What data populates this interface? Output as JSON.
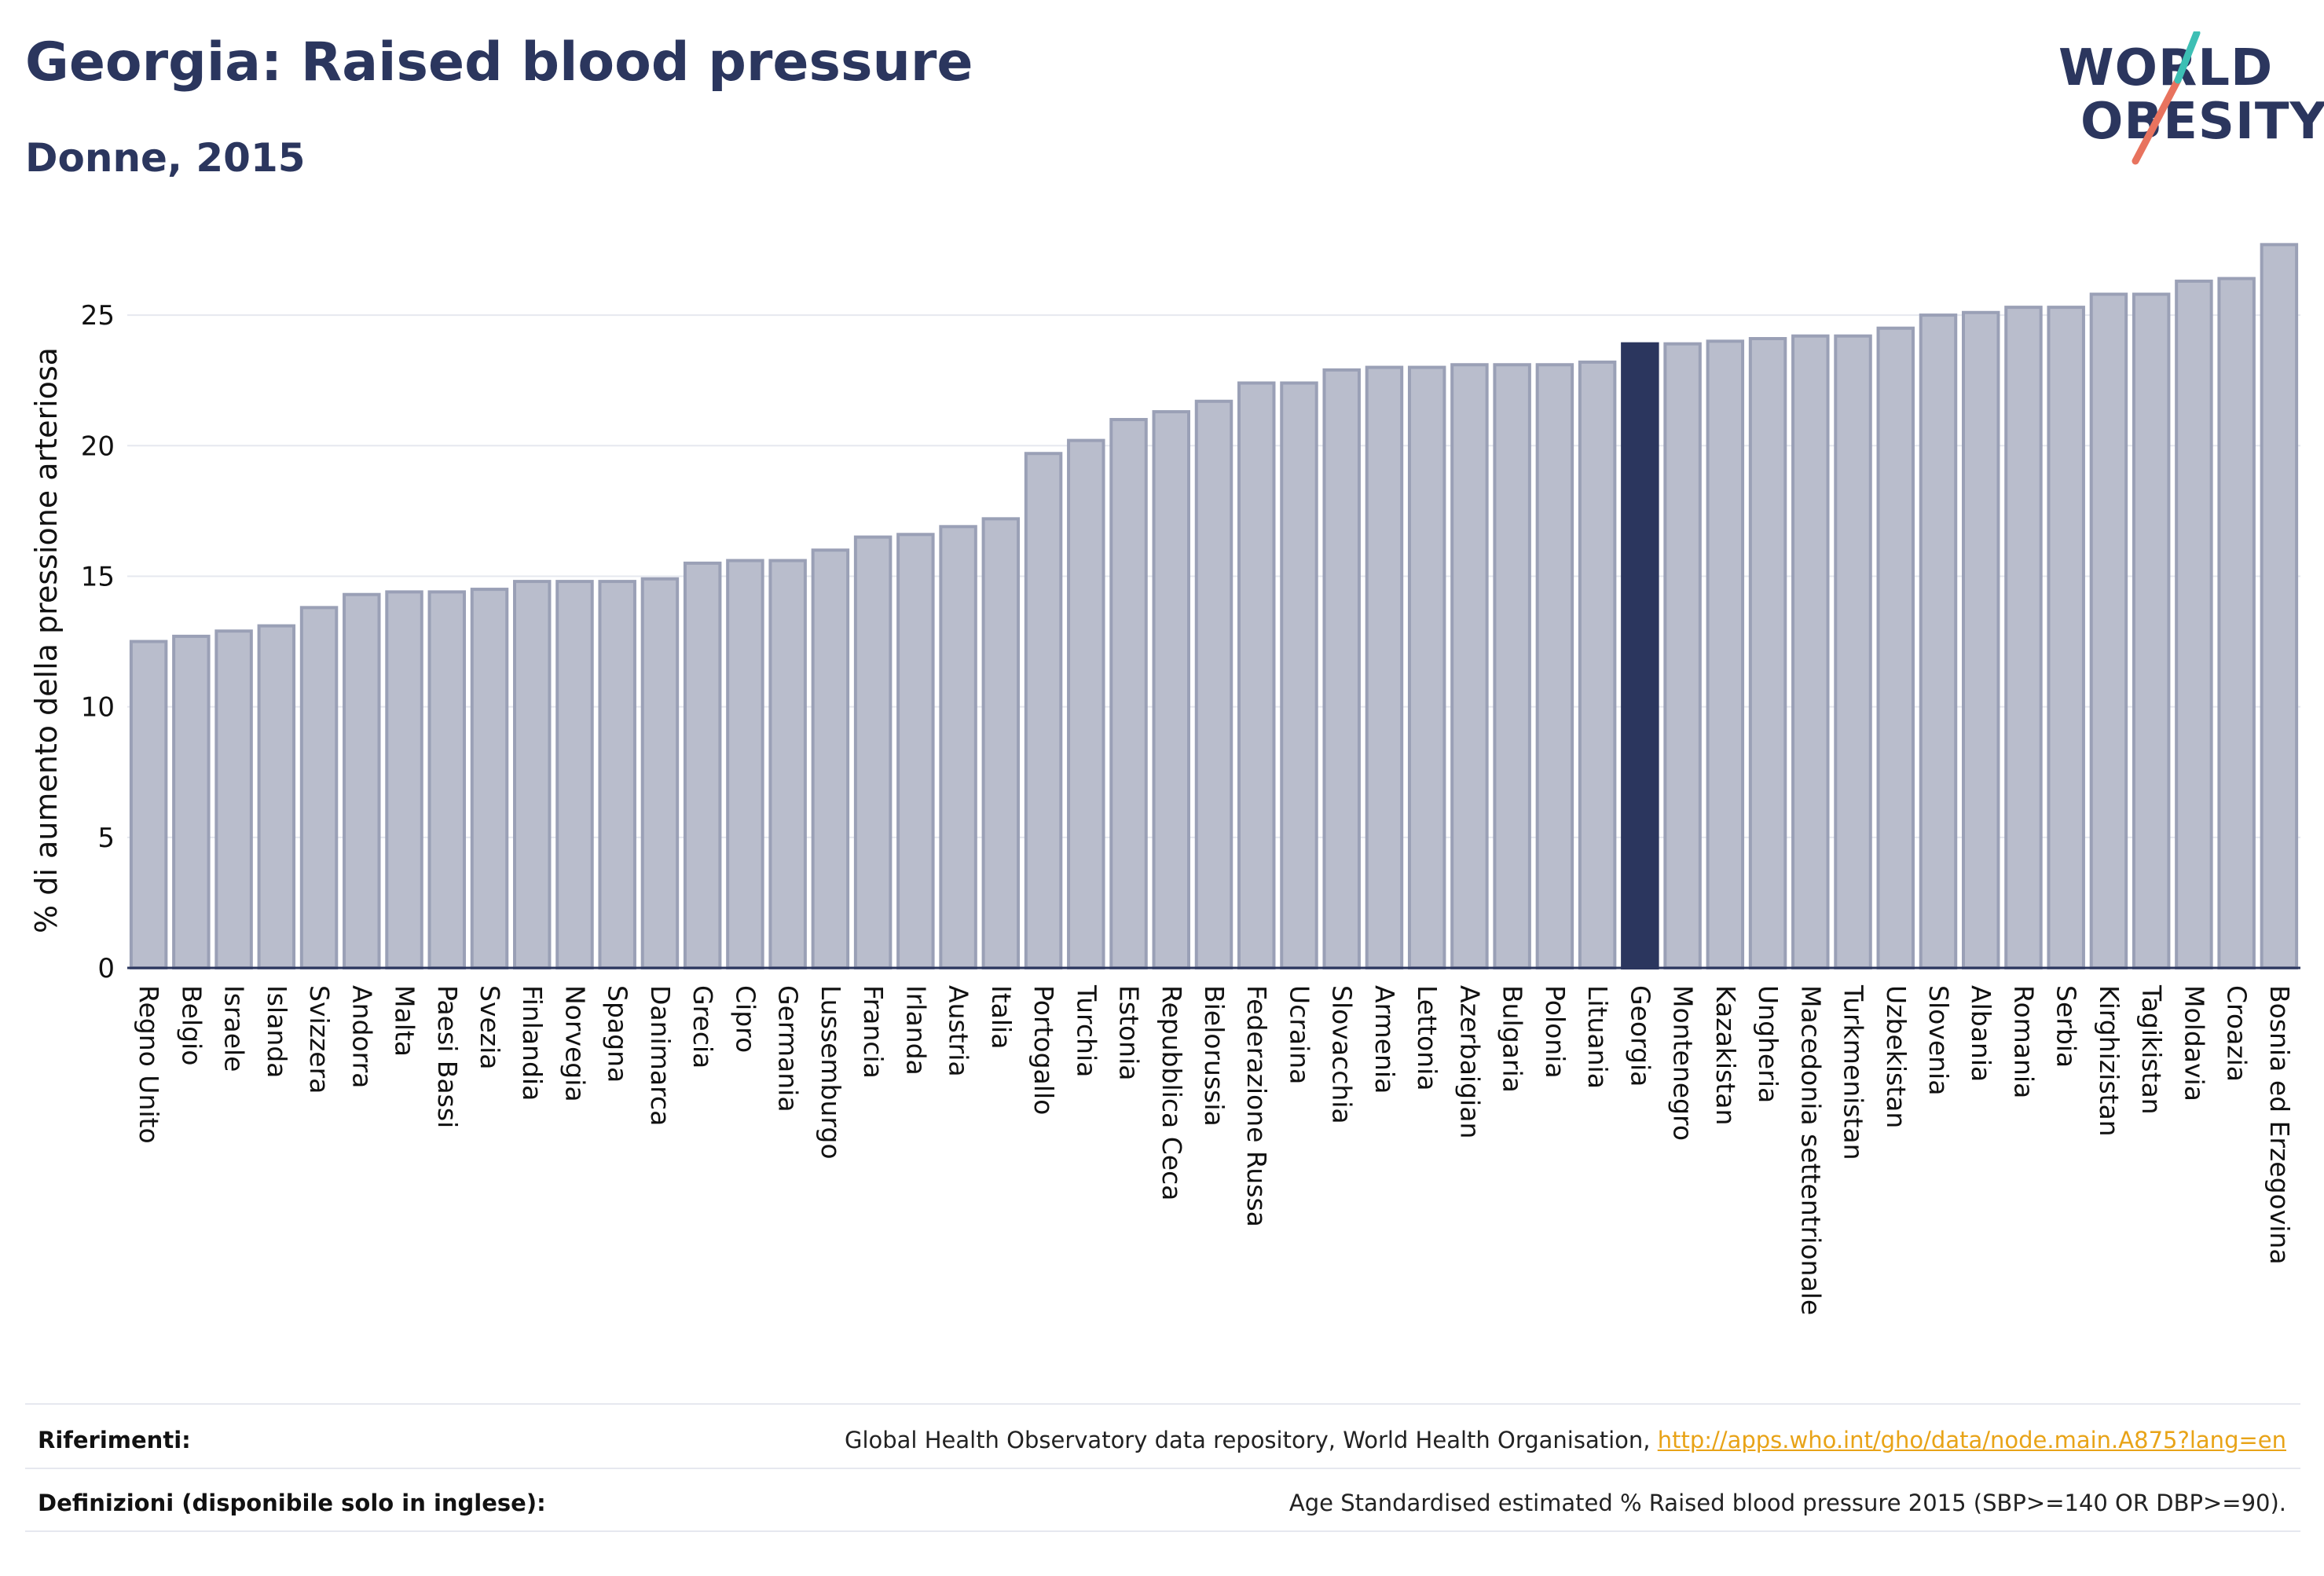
{
  "title": "Georgia: Raised blood pressure",
  "subtitle": "Donne, 2015",
  "logo": {
    "line1": "WORLD",
    "line2": "OBESITY"
  },
  "footer": {
    "references_label": "Riferimenti:",
    "references_text": "Global Health Observatory data repository, World Health Organisation, ",
    "references_link": "http://apps.who.int/gho/data/node.main.A875?lang=en",
    "definitions_label": "Definizioni (disponibile solo in inglese):",
    "definitions_text": "Age Standardised estimated % Raised blood pressure 2015 (SBP>=140 OR DBP>=90)."
  },
  "colors": {
    "bar": "#b9bdcc",
    "bar_stroke": "#9aa0b6",
    "highlight": "#2b365e",
    "grid": "#e6e8ef"
  },
  "chart_data": {
    "type": "bar",
    "title": "Georgia: Raised blood pressure",
    "subtitle": "Donne, 2015",
    "xlabel": "",
    "ylabel": "% di aumento della pressione arteriosa",
    "ylim": [
      0,
      27.5
    ],
    "yticks": [
      0,
      5,
      10,
      15,
      20,
      25
    ],
    "grid": true,
    "highlight": "Georgia",
    "categories": [
      "Regno Unito",
      "Belgio",
      "Israele",
      "Islanda",
      "Svizzera",
      "Andorra",
      "Malta",
      "Paesi Bassi",
      "Svezia",
      "Finlandia",
      "Norvegia",
      "Spagna",
      "Danimarca",
      "Grecia",
      "Cipro",
      "Germania",
      "Lussemburgo",
      "Francia",
      "Irlanda",
      "Austria",
      "Italia",
      "Portogallo",
      "Turchia",
      "Estonia",
      "Repubblica Ceca",
      "Bielorussia",
      "Federazione Russa",
      "Ucraina",
      "Slovacchia",
      "Armenia",
      "Lettonia",
      "Azerbaigian",
      "Bulgaria",
      "Polonia",
      "Lituania",
      "Georgia",
      "Montenegro",
      "Kazakistan",
      "Ungheria",
      "Macedonia settentrionale",
      "Turkmenistan",
      "Uzbekistan",
      "Slovenia",
      "Albania",
      "Romania",
      "Serbia",
      "Kirghizistan",
      "Tagikistan",
      "Moldavia",
      "Croazia",
      "Bosnia ed Erzegovina"
    ],
    "values": [
      12.5,
      12.7,
      12.9,
      13.1,
      13.8,
      14.3,
      14.4,
      14.4,
      14.5,
      14.8,
      14.8,
      14.8,
      14.9,
      15.5,
      15.6,
      15.6,
      16.0,
      16.5,
      16.6,
      16.9,
      17.2,
      19.7,
      20.2,
      21.0,
      21.3,
      21.7,
      22.4,
      22.4,
      22.9,
      23.0,
      23.0,
      23.1,
      23.1,
      23.1,
      23.2,
      23.9,
      23.9,
      24.0,
      24.1,
      24.2,
      24.2,
      24.5,
      25.0,
      25.1,
      25.3,
      25.3,
      25.8,
      25.8,
      26.3,
      26.4,
      27.7
    ]
  }
}
